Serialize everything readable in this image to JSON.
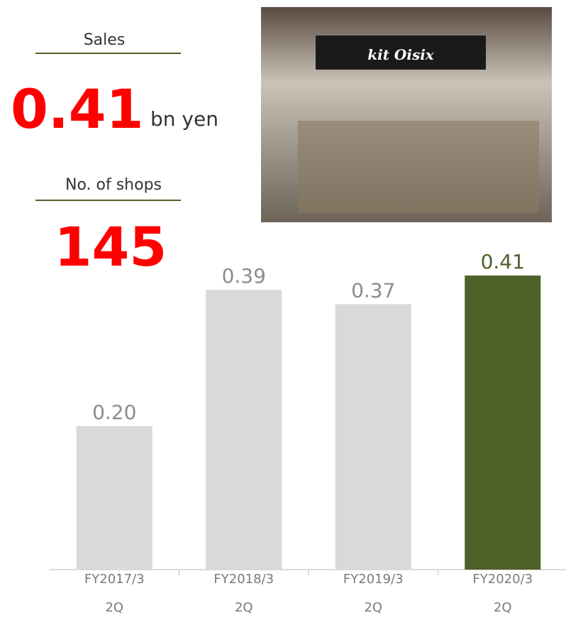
{
  "chart_data": {
    "type": "bar",
    "categories": [
      "FY2017/3\n2Q",
      "FY2018/3\n2Q",
      "FY2019/3\n2Q",
      "FY2020/3\n2Q"
    ],
    "values": [
      0.2,
      0.39,
      0.37,
      0.41
    ],
    "value_labels": [
      "0.20",
      "0.39",
      "0.37",
      "0.41"
    ],
    "colors": [
      "#d9d9d9",
      "#d9d9d9",
      "#d9d9d9",
      "#4e6128"
    ],
    "label_colors": [
      "#8c8c8c",
      "#8c8c8c",
      "#8c8c8c",
      "#4e6128"
    ],
    "ylim": [
      0,
      0.45
    ],
    "kpis": [
      {
        "label": "Sales",
        "value": "0.41",
        "unit": "bn yen"
      },
      {
        "label": "No. of shops",
        "value": "145"
      }
    ],
    "photo_sign": "kit Oisix"
  }
}
